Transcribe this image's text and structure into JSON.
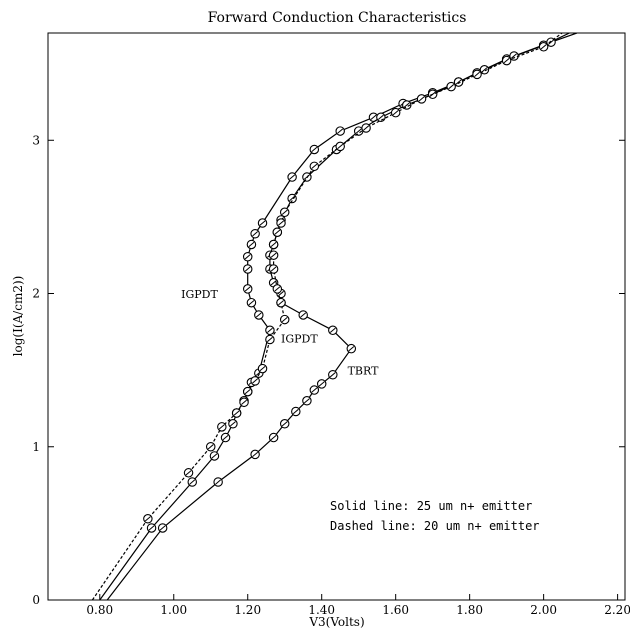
{
  "chart_data": {
    "type": "line",
    "title": "Forward Conduction Characteristics",
    "xlabel": "V3(Volts)",
    "ylabel": "log(I(A/cm2))",
    "xlim": [
      0.66,
      2.22
    ],
    "ylim": [
      0,
      3.7
    ],
    "xticks": [
      {
        "value": 0.8,
        "label": "0.80"
      },
      {
        "value": 1.0,
        "label": "1.00"
      },
      {
        "value": 1.2,
        "label": "1.20"
      },
      {
        "value": 1.4,
        "label": "1.40"
      },
      {
        "value": 1.6,
        "label": "1.60"
      },
      {
        "value": 1.8,
        "label": "1.80"
      },
      {
        "value": 2.0,
        "label": "2.00"
      },
      {
        "value": 2.2,
        "label": "2.20"
      }
    ],
    "yticks": [
      {
        "value": 0,
        "label": "0"
      },
      {
        "value": 1,
        "label": "1"
      },
      {
        "value": 2,
        "label": "2"
      },
      {
        "value": 3,
        "label": "3"
      }
    ],
    "grid": false,
    "notes": [
      "Solid line: 25 um n+ emitter",
      "Dashed line: 20 um n+ emitter"
    ],
    "annotations": [
      {
        "text": "IGPDT",
        "x": 1.02,
        "y": 1.97
      },
      {
        "text": "IGPDT",
        "x": 1.29,
        "y": 1.68
      },
      {
        "text": "TBRT",
        "x": 1.47,
        "y": 1.47
      }
    ],
    "series": [
      {
        "style": "solid",
        "markers": true,
        "points": [
          [
            0.8,
            0.0
          ],
          [
            0.94,
            0.47
          ],
          [
            1.05,
            0.77
          ],
          [
            1.11,
            0.94
          ],
          [
            1.14,
            1.06
          ],
          [
            1.16,
            1.15
          ],
          [
            1.17,
            1.22
          ],
          [
            1.19,
            1.3
          ],
          [
            1.2,
            1.36
          ],
          [
            1.21,
            1.42
          ],
          [
            1.23,
            1.48
          ],
          [
            1.26,
            1.76
          ],
          [
            1.23,
            1.86
          ],
          [
            1.21,
            1.94
          ],
          [
            1.2,
            2.03
          ],
          [
            1.2,
            2.16
          ],
          [
            1.2,
            2.24
          ],
          [
            1.21,
            2.32
          ],
          [
            1.22,
            2.39
          ],
          [
            1.24,
            2.46
          ],
          [
            1.32,
            2.76
          ],
          [
            1.38,
            2.94
          ],
          [
            1.45,
            3.06
          ],
          [
            1.54,
            3.15
          ],
          [
            1.62,
            3.24
          ],
          [
            1.7,
            3.31
          ],
          [
            1.77,
            3.38
          ],
          [
            1.82,
            3.44
          ],
          [
            1.9,
            3.53
          ],
          [
            2.0,
            3.62
          ],
          [
            2.07,
            3.7
          ]
        ]
      },
      {
        "style": "solid",
        "markers": true,
        "points": [
          [
            0.82,
            0.0
          ],
          [
            0.97,
            0.47
          ],
          [
            1.12,
            0.77
          ],
          [
            1.22,
            0.95
          ],
          [
            1.27,
            1.06
          ],
          [
            1.3,
            1.15
          ],
          [
            1.33,
            1.23
          ],
          [
            1.36,
            1.3
          ],
          [
            1.38,
            1.37
          ],
          [
            1.4,
            1.41
          ],
          [
            1.43,
            1.47
          ],
          [
            1.48,
            1.64
          ],
          [
            1.43,
            1.76
          ],
          [
            1.35,
            1.86
          ],
          [
            1.29,
            1.94
          ],
          [
            1.29,
            2.0
          ],
          [
            1.27,
            2.07
          ],
          [
            1.26,
            2.16
          ],
          [
            1.26,
            2.25
          ],
          [
            1.27,
            2.32
          ],
          [
            1.28,
            2.4
          ],
          [
            1.29,
            2.48
          ],
          [
            1.32,
            2.62
          ],
          [
            1.36,
            2.76
          ],
          [
            1.44,
            2.94
          ],
          [
            1.5,
            3.06
          ],
          [
            1.56,
            3.15
          ],
          [
            1.63,
            3.23
          ],
          [
            1.7,
            3.3
          ],
          [
            1.77,
            3.38
          ],
          [
            1.84,
            3.46
          ],
          [
            1.92,
            3.55
          ],
          [
            2.02,
            3.64
          ],
          [
            2.09,
            3.7
          ]
        ]
      },
      {
        "style": "dashed",
        "markers": true,
        "points": [
          [
            0.78,
            0.0
          ],
          [
            0.93,
            0.53
          ],
          [
            1.04,
            0.83
          ],
          [
            1.1,
            1.0
          ],
          [
            1.13,
            1.13
          ],
          [
            1.17,
            1.22
          ],
          [
            1.19,
            1.29
          ],
          [
            1.2,
            1.36
          ],
          [
            1.22,
            1.43
          ],
          [
            1.24,
            1.51
          ],
          [
            1.26,
            1.7
          ],
          [
            1.3,
            1.83
          ],
          [
            1.29,
            1.94
          ],
          [
            1.28,
            2.03
          ],
          [
            1.27,
            2.16
          ],
          [
            1.27,
            2.25
          ],
          [
            1.27,
            2.32
          ],
          [
            1.28,
            2.4
          ],
          [
            1.29,
            2.46
          ],
          [
            1.3,
            2.53
          ],
          [
            1.38,
            2.83
          ],
          [
            1.45,
            2.96
          ],
          [
            1.52,
            3.08
          ],
          [
            1.6,
            3.18
          ],
          [
            1.67,
            3.27
          ],
          [
            1.75,
            3.35
          ],
          [
            1.82,
            3.43
          ],
          [
            1.9,
            3.52
          ],
          [
            2.0,
            3.61
          ],
          [
            2.05,
            3.7
          ]
        ]
      }
    ]
  }
}
